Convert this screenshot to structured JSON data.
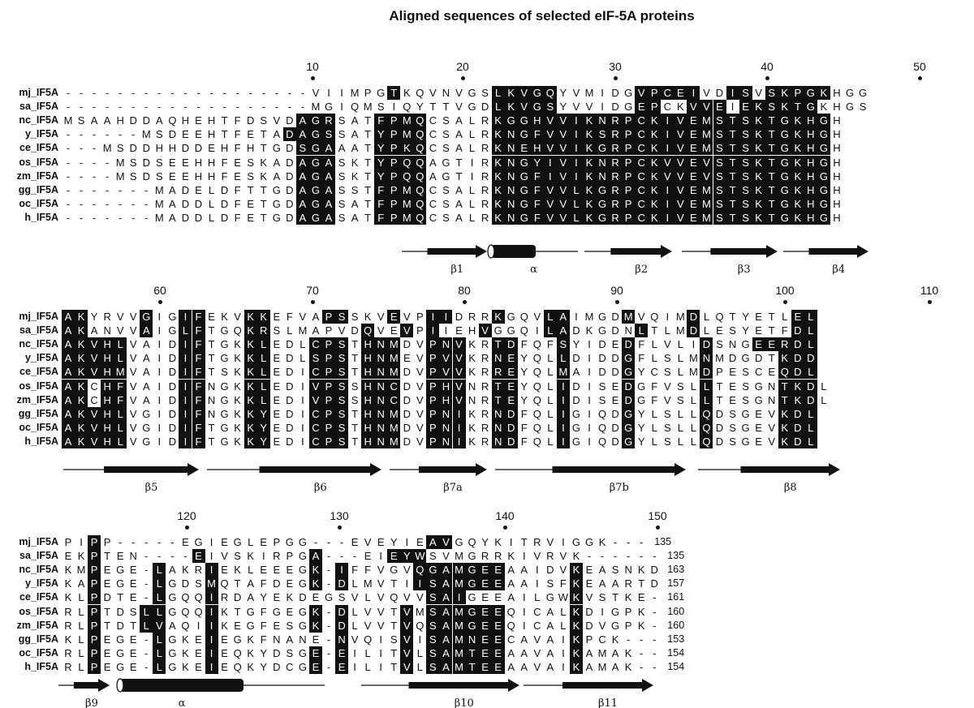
{
  "title": "Aligned sequences of selected eIF-5A proteins",
  "blocks": [
    {
      "numbers": [
        "10",
        "20",
        "30",
        "40",
        "50"
      ],
      "rows": [
        {
          "name": "mj_IF5A",
          "seq": "-------------------VIIMPGTKQVNVGSLKVGQYVMIDGVPCEIVDISVSKPGKHGG",
          "end": ""
        },
        {
          "name": "sa_IF5A",
          "seq": "-------------------MGIQMSIQYTTVGDLKVGSYVVIDGEPCKVVEIEKSKTGKHGS",
          "end": ""
        },
        {
          "name": "nc_IF5A",
          "seq": "MSAAHDDAQHEHTFDSVDAGRSATFPMQCSALRKGGHVVIKNRPCKIVEMSTSKTGKHGH",
          "end": ""
        },
        {
          "name": "y_IF5A",
          "seq": "------MSDEEHTFETADAGSSATYPMQCSALRKNGFVVIKSRPCKIVEMSTSKTGKHGH",
          "end": ""
        },
        {
          "name": "ce_IF5A",
          "seq": "---MSDDHHDDEHFHTGDSGAAATYPKQCSALRKNEHVVIKGRPCKIVEMSTSKTGKHGH",
          "end": ""
        },
        {
          "name": "os_IF5A",
          "seq": "----MSDSEEHHFESKADAGASKTYPQQAGTIRKNGYIVIKNRPCKVVEVSTSKTGKHGH",
          "end": ""
        },
        {
          "name": "zm_IF5A",
          "seq": "----MSDSEEHHFESKADAGASKTYPQQAGTIRKNGFIVIKNRPCKVVEVSTSKTGKHGH",
          "end": ""
        },
        {
          "name": "gg_IF5A",
          "seq": "-------MADELDFTTGDAGASSTFPMQCSALRKNGFVVLKGRPCKIVEMSTSKTGKHGH",
          "end": ""
        },
        {
          "name": "oc_IF5A",
          "seq": "-------MADDLDFETGDAGASATFPMQCSALRKNGFVVLKGRPCKIVEMSTSKTGKHGH",
          "end": ""
        },
        {
          "name": "h_IF5A",
          "seq": "-------MADDLDFETGDAGASATFPMQCSALRKNGFVVLKGRPCKIVEMSTSKTGKHGH",
          "end": ""
        }
      ],
      "structure": [
        {
          "kind": "strand",
          "label": "β1"
        },
        {
          "kind": "helix",
          "label": "α"
        },
        {
          "kind": "strand",
          "label": "β2"
        },
        {
          "kind": "strand",
          "label": "β3"
        },
        {
          "kind": "strand",
          "label": "β4"
        }
      ]
    },
    {
      "numbers": [
        "60",
        "70",
        "80",
        "90",
        "100",
        "110"
      ],
      "rows": [
        {
          "name": "mj_IF5A",
          "seq": "AKYRVVGIGIFEKVKKEFVAPSSKVEVPIIDRRKGQVLAIMGDMVQIMDLQTYETLEL",
          "end": ""
        },
        {
          "name": "sa_IF5A",
          "seq": "AKANVVAIGLFTGQKRSLMAPVDQVEVPIIEHVGGQILADKGDNLTLMDLESYETFDL",
          "end": ""
        },
        {
          "name": "nc_IF5A",
          "seq": "AKVHLVAIDIFTGKKLEDLCPSTHNMDVPNVKRTDFQFSYIDEDFLVLIDSNGEERDL",
          "end": ""
        },
        {
          "name": "y_IF5A",
          "seq": "AKVHLVAIDIFTGKKLEDLSPSTHNMEVPVVKRNEYQLLDIDDGFLSLMNMDGDTKDD",
          "end": ""
        },
        {
          "name": "ce_IF5A",
          "seq": "AKVHMVAIDIFTSKKLEDICPSTHNMDVPVVKRREYQLMAIDDGYCSLMDPESCEQDL",
          "end": ""
        },
        {
          "name": "os_IF5A",
          "seq": "AKCHFVAIDIFNGKKLEDIVPSSHNCDVPHVNRTEYQLIDISEDGFVSLLTESGNTKDL",
          "end": ""
        },
        {
          "name": "zm_IF5A",
          "seq": "AKCHFVAIDIFNGKKLEDIVPSSHNCDVPHVNRTEYQLIDISEDGFVSLLTESGNTKDL",
          "end": ""
        },
        {
          "name": "gg_IF5A",
          "seq": "AKVHLVGIDIFNGKKYEDICPSTHNMDVPNIKRNDFQLIGIQDGYLSLLQDSGEVKDL",
          "end": ""
        },
        {
          "name": "oc_IF5A",
          "seq": "AKVHLVGIDIFTGKKYEDICPSTHNMDVPNIKRNDFQLIGIQDGYLSLLQDSGEVKDL",
          "end": ""
        },
        {
          "name": "h_IF5A",
          "seq": "AKVHLVGIDIFTGKKYEDICPSTHNMDVPNIKRNDFQLIGIQDGYLSLLQDSGEVKDL",
          "end": ""
        }
      ],
      "structure": [
        {
          "kind": "strand",
          "label": "β5"
        },
        {
          "kind": "strand",
          "label": "β6"
        },
        {
          "kind": "strand",
          "label": "β7a"
        },
        {
          "kind": "strand",
          "label": "β7b"
        },
        {
          "kind": "strand",
          "label": "β8"
        }
      ]
    },
    {
      "numbers": [
        "120",
        "130",
        "140",
        "150"
      ],
      "rows": [
        {
          "name": "mj_IF5A",
          "seq": "PIPP-----EGIEGLEPGG---EVEYIEAVGQYKITRVIGGK---",
          "end": "135"
        },
        {
          "name": "sa_IF5A",
          "seq": "EKPTEN----EIVSKIRPGA---EIEYWSVMGRRKIVRVK------",
          "end": "135"
        },
        {
          "name": "nc_IF5A",
          "seq": "KMPEGE-LAKRIEKLEEEGK-IFFVGVQGAMGEEAAIDVKEASNKD",
          "end": "163"
        },
        {
          "name": "y_IF5A",
          "seq": "KAPEGE-LGDSMQTAFDEGK-DLMVTIISAMGEEAAISFKEAARTD",
          "end": "157"
        },
        {
          "name": "ce_IF5A",
          "seq": "KLPDTE-LGQQIRDAYEKDEGSVLVQVVSAIGEEAILGWKVSTKE-",
          "end": "161"
        },
        {
          "name": "os_IF5A",
          "seq": "RLPTDSLLGQQIKTGFGEGK-DLVVTVMSAMGEEQICALKDIGPK-",
          "end": "160"
        },
        {
          "name": "zm_IF5A",
          "seq": "RLPTDTLVAQIIKEGFESGK-DLVVTVQSAMGEEQICALKDVGPK-",
          "end": "160"
        },
        {
          "name": "gg_IF5A",
          "seq": "KLPEGE-LGKEIEGKFNANE-NVQISVISAMNEECAVAIKPCK---",
          "end": "153"
        },
        {
          "name": "oc_IF5A",
          "seq": "RLPEGE-LGKEIEQKYDSGE-EILITVLSAMTEEAAVAIKAMAK--",
          "end": "154"
        },
        {
          "name": "h_IF5A",
          "seq": "RLPEGE-LGKEIEQKYDCGE-EILITVLSAMTEEAAVAIKAMAK--",
          "end": "154"
        }
      ],
      "structure": [
        {
          "kind": "strand",
          "label": "β9"
        },
        {
          "kind": "helix",
          "label": "α"
        },
        {
          "kind": "strand",
          "label": "β10"
        },
        {
          "kind": "strand",
          "label": "β11"
        }
      ]
    }
  ]
}
